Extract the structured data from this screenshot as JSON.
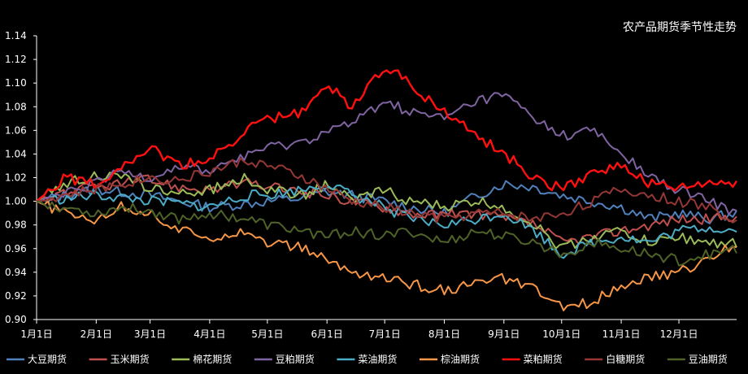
{
  "chart_data": {
    "type": "line",
    "title": "农产品期货季节性走势",
    "xlabel": "",
    "ylabel": "",
    "x_ticks": [
      "1月1日",
      "2月1日",
      "3月1日",
      "4月1日",
      "5月1日",
      "6月1日",
      "7月1日",
      "8月1日",
      "9月1日",
      "10月1日",
      "11月1日",
      "12月1日"
    ],
    "x_tick_days": [
      1,
      32,
      60,
      91,
      121,
      152,
      182,
      213,
      244,
      274,
      305,
      335
    ],
    "x_range": [
      1,
      365
    ],
    "ylim": [
      0.9,
      1.14
    ],
    "y_ticks": [
      "0.90",
      "0.92",
      "0.94",
      "0.96",
      "0.98",
      "1.00",
      "1.02",
      "1.04",
      "1.06",
      "1.08",
      "1.10",
      "1.12",
      "1.14"
    ],
    "grid": false,
    "legend_position": "bottom",
    "series": [
      {
        "name": "大豆期货",
        "color": "#4f81bd",
        "x": [
          1,
          15,
          32,
          45,
          60,
          75,
          91,
          110,
          121,
          140,
          152,
          165,
          182,
          195,
          213,
          230,
          244,
          260,
          274,
          290,
          305,
          320,
          335,
          350,
          365
        ],
        "values": [
          1.0,
          1.005,
          1.01,
          1.008,
          1.005,
          1.0,
          0.995,
          0.998,
          1.0,
          1.003,
          1.008,
          1.005,
          1.0,
          0.995,
          0.99,
          1.005,
          1.015,
          1.012,
          1.005,
          1.0,
          0.995,
          0.985,
          0.99,
          0.985,
          0.99
        ]
      },
      {
        "name": "玉米期货",
        "color": "#c0504d",
        "x": [
          1,
          15,
          32,
          45,
          60,
          75,
          91,
          110,
          121,
          140,
          152,
          165,
          182,
          195,
          213,
          230,
          244,
          260,
          274,
          290,
          305,
          320,
          335,
          350,
          365
        ],
        "values": [
          1.0,
          1.008,
          1.012,
          1.015,
          1.018,
          1.012,
          1.01,
          1.015,
          1.012,
          1.008,
          1.005,
          1.0,
          0.995,
          0.99,
          0.988,
          0.99,
          0.985,
          0.98,
          0.965,
          0.97,
          0.975,
          0.98,
          0.985,
          0.985,
          0.988
        ]
      },
      {
        "name": "棉花期货",
        "color": "#9bbb59",
        "x": [
          1,
          15,
          32,
          45,
          60,
          75,
          91,
          110,
          121,
          140,
          152,
          165,
          182,
          195,
          213,
          230,
          244,
          260,
          274,
          290,
          305,
          320,
          335,
          350,
          365
        ],
        "values": [
          1.0,
          1.015,
          1.022,
          1.02,
          1.012,
          1.005,
          1.01,
          1.02,
          1.01,
          1.005,
          1.015,
          1.0,
          1.01,
          1.0,
          0.995,
          1.0,
          0.995,
          0.98,
          0.96,
          0.97,
          0.975,
          0.965,
          0.97,
          0.965,
          0.965
        ]
      },
      {
        "name": "豆粕期货",
        "color": "#8064a2",
        "x": [
          1,
          15,
          32,
          45,
          60,
          75,
          91,
          110,
          121,
          140,
          152,
          165,
          182,
          195,
          213,
          230,
          244,
          260,
          274,
          290,
          305,
          320,
          335,
          350,
          365
        ],
        "values": [
          1.0,
          1.005,
          1.015,
          1.025,
          1.02,
          1.03,
          1.025,
          1.04,
          1.045,
          1.05,
          1.06,
          1.065,
          1.085,
          1.075,
          1.07,
          1.085,
          1.09,
          1.07,
          1.055,
          1.06,
          1.04,
          1.02,
          1.01,
          1.0,
          0.99
        ]
      },
      {
        "name": "菜油期货",
        "color": "#4bacc6",
        "x": [
          1,
          15,
          32,
          45,
          60,
          75,
          91,
          110,
          121,
          140,
          152,
          165,
          182,
          195,
          213,
          230,
          244,
          260,
          274,
          290,
          305,
          320,
          335,
          350,
          365
        ],
        "values": [
          1.0,
          1.002,
          1.005,
          1.003,
          1.0,
          0.998,
          0.995,
          1.005,
          1.005,
          1.01,
          1.015,
          1.005,
          0.995,
          0.985,
          0.98,
          0.985,
          0.99,
          0.975,
          0.955,
          0.965,
          0.97,
          0.965,
          0.975,
          0.978,
          0.975
        ]
      },
      {
        "name": "棕油期货",
        "color": "#f79646",
        "x": [
          1,
          15,
          32,
          45,
          60,
          75,
          91,
          110,
          121,
          140,
          152,
          165,
          182,
          195,
          213,
          230,
          244,
          260,
          274,
          290,
          305,
          320,
          335,
          350,
          365
        ],
        "values": [
          1.0,
          0.99,
          0.985,
          0.995,
          0.99,
          0.975,
          0.97,
          0.975,
          0.965,
          0.96,
          0.95,
          0.94,
          0.935,
          0.93,
          0.925,
          0.93,
          0.935,
          0.925,
          0.91,
          0.915,
          0.93,
          0.935,
          0.94,
          0.95,
          0.965
        ]
      },
      {
        "name": "菜粕期货",
        "color": "#ff1010",
        "x": [
          1,
          15,
          32,
          45,
          60,
          75,
          91,
          110,
          121,
          140,
          152,
          165,
          182,
          195,
          213,
          230,
          244,
          260,
          274,
          290,
          305,
          320,
          335,
          350,
          365
        ],
        "values": [
          1.0,
          1.02,
          1.015,
          1.03,
          1.045,
          1.03,
          1.035,
          1.06,
          1.07,
          1.075,
          1.1,
          1.08,
          1.115,
          1.1,
          1.075,
          1.055,
          1.04,
          1.02,
          1.01,
          1.025,
          1.03,
          1.015,
          1.01,
          1.015,
          1.015
        ]
      },
      {
        "name": "白糖期货",
        "color": "#953735",
        "x": [
          1,
          15,
          32,
          45,
          60,
          75,
          91,
          110,
          121,
          140,
          152,
          165,
          182,
          195,
          213,
          230,
          244,
          260,
          274,
          290,
          305,
          320,
          335,
          350,
          365
        ],
        "values": [
          1.0,
          1.005,
          1.01,
          1.015,
          1.02,
          1.018,
          1.025,
          1.035,
          1.03,
          1.02,
          1.01,
          1.0,
          0.995,
          0.99,
          0.985,
          0.99,
          0.99,
          0.985,
          0.99,
          1.0,
          1.01,
          1.005,
          1.0,
          0.995,
          0.985
        ]
      },
      {
        "name": "豆油期货",
        "color": "#4f6228",
        "x": [
          1,
          15,
          32,
          45,
          60,
          75,
          91,
          110,
          121,
          140,
          152,
          165,
          182,
          195,
          213,
          230,
          244,
          260,
          274,
          290,
          305,
          320,
          335,
          350,
          365
        ],
        "values": [
          1.0,
          0.995,
          0.99,
          0.995,
          0.992,
          0.985,
          0.99,
          0.985,
          0.98,
          0.975,
          0.97,
          0.975,
          0.97,
          0.975,
          0.965,
          0.975,
          0.97,
          0.965,
          0.955,
          0.965,
          0.96,
          0.955,
          0.95,
          0.955,
          0.96
        ]
      }
    ]
  }
}
